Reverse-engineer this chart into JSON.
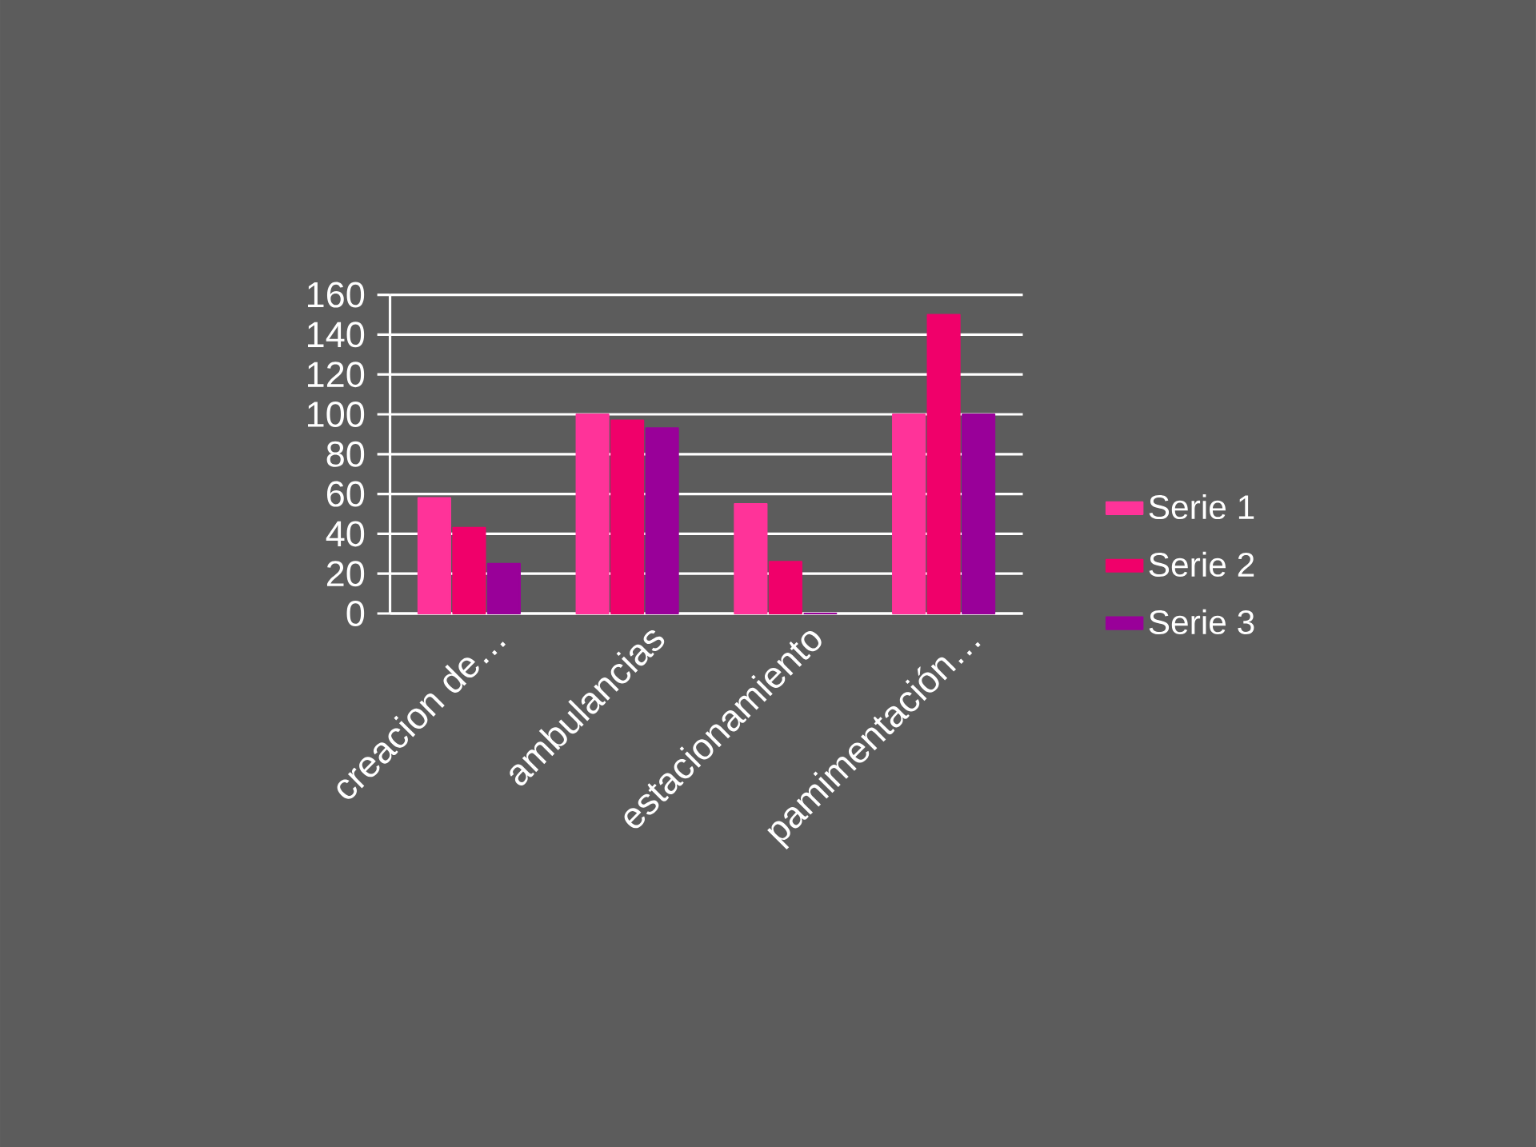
{
  "chart_data": {
    "type": "bar",
    "categories": [
      "creacion de…",
      "ambulancias",
      "estacionamiento",
      "pamimentación…"
    ],
    "series": [
      {
        "name": "Serie 1",
        "color": "#ff3399",
        "values": [
          58,
          100,
          55,
          100
        ]
      },
      {
        "name": "Serie 2",
        "color": "#f0006a",
        "values": [
          43,
          97,
          26,
          150
        ]
      },
      {
        "name": "Serie 3",
        "color": "#990099",
        "values": [
          25,
          93,
          0,
          100
        ]
      }
    ],
    "ylim": [
      0,
      160
    ],
    "yticks": [
      0,
      20,
      40,
      60,
      80,
      100,
      120,
      140,
      160
    ],
    "grid": "y",
    "legend": "right"
  }
}
